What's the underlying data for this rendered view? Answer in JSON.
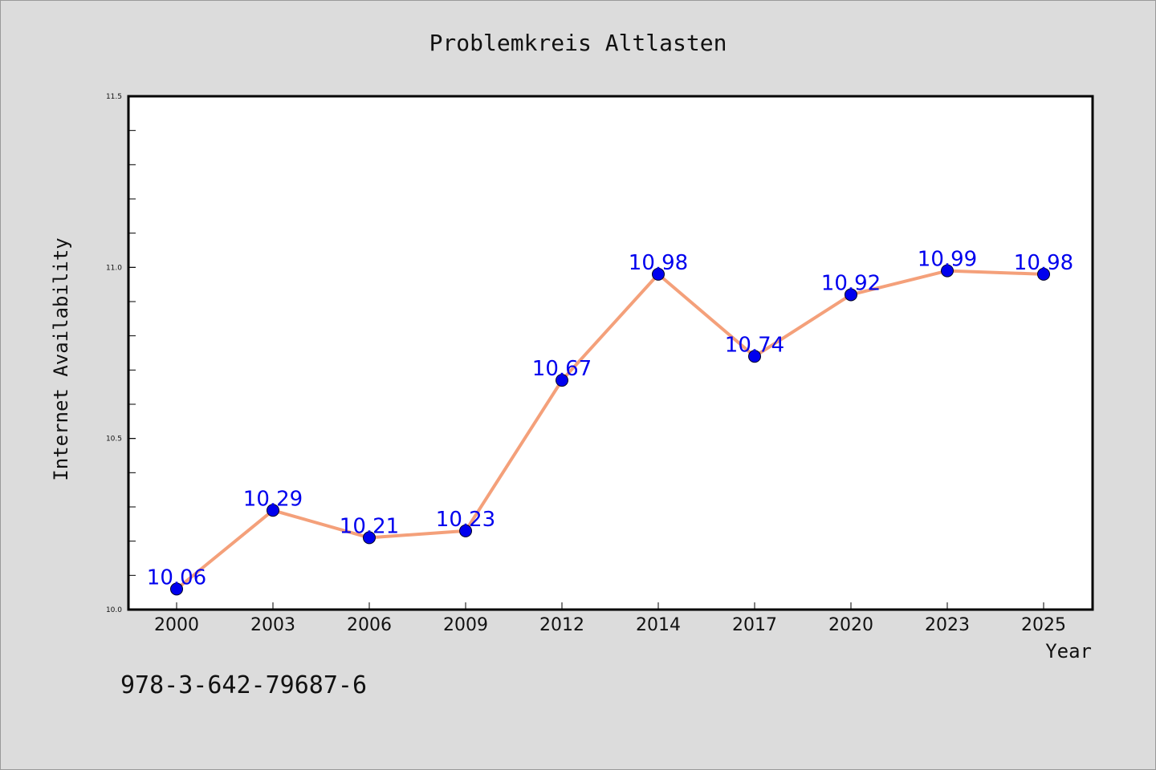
{
  "chart_data": {
    "type": "line",
    "title": "Problemkreis Altlasten",
    "xlabel": "Year",
    "ylabel": "Internet Availability",
    "categories": [
      "2000",
      "2003",
      "2006",
      "2009",
      "2012",
      "2014",
      "2017",
      "2020",
      "2023",
      "2025"
    ],
    "series": [
      {
        "values": [
          10.06,
          10.29,
          10.21,
          10.23,
          10.67,
          10.98,
          10.74,
          10.92,
          10.99,
          10.98
        ],
        "data_labels": [
          "10.06",
          "10.29",
          "10.21",
          "10.23",
          "10.67",
          "10.98",
          "10.74",
          "10.92",
          "10.99",
          "10.98"
        ]
      }
    ],
    "ylim": [
      10.0,
      11.5
    ],
    "y_ticks": [
      "10.0",
      "10.5",
      "11.0",
      "11.5"
    ],
    "y_tick_values": [
      10.0,
      10.5,
      11.0,
      11.5
    ],
    "grid": false,
    "colors": {
      "line": "#f4a07a",
      "marker": "#0000ee",
      "label": "#0000ee",
      "background": "#dcdcdc",
      "plot_background": "#ffffff"
    }
  },
  "footer": {
    "isbn": "978-3-642-79687-6"
  }
}
